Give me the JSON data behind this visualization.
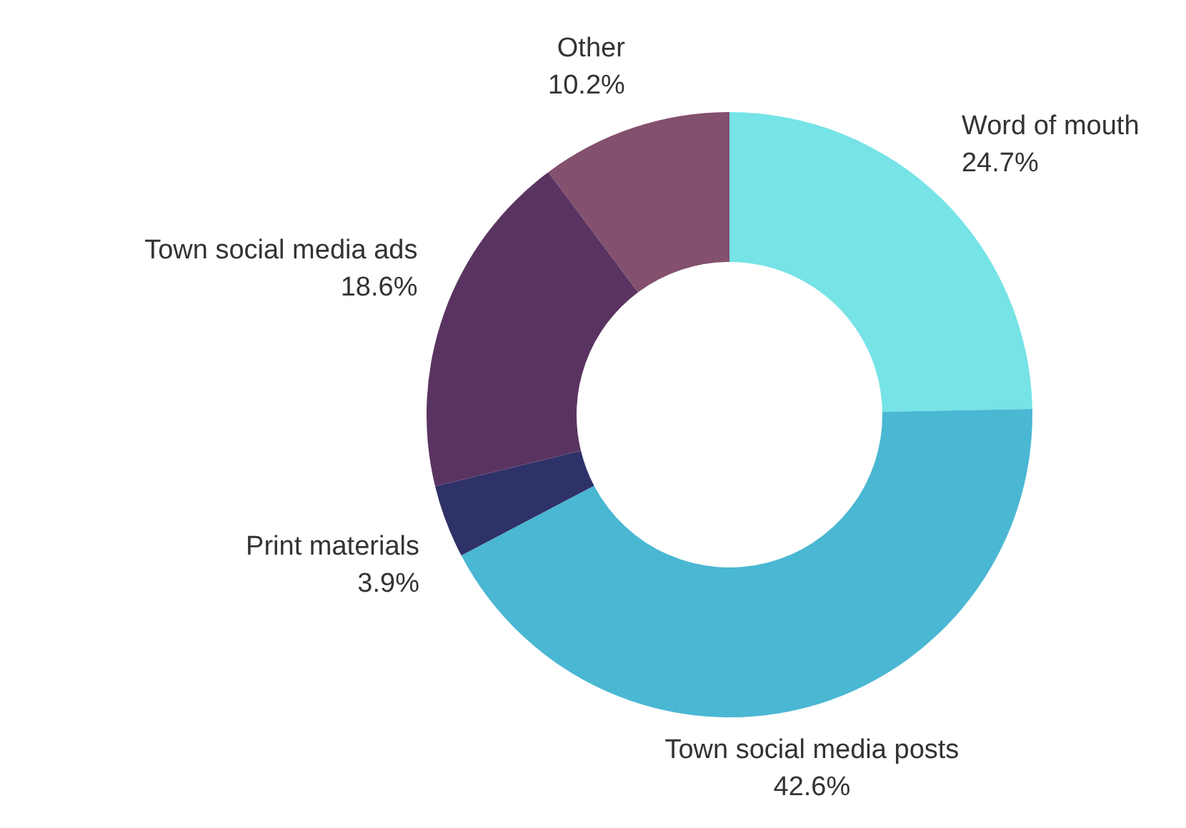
{
  "chart_data": {
    "type": "donut",
    "categories": [
      "Word of mouth",
      "Town social media posts",
      "Print materials",
      "Town social media ads",
      "Other"
    ],
    "values": [
      24.7,
      42.6,
      3.9,
      18.6,
      10.2
    ],
    "value_labels": [
      "24.7%",
      "42.6%",
      "3.9%",
      "18.6%",
      "10.2%"
    ],
    "colors": [
      "#76e3e6",
      "#4ab7d3",
      "#2e3268",
      "#5a3461",
      "#83506e"
    ]
  }
}
